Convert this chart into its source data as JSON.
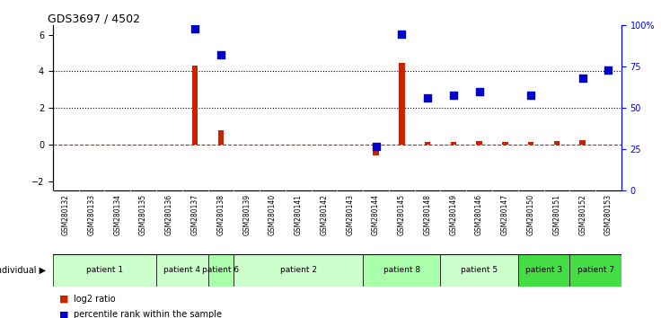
{
  "title": "GDS3697 / 4502",
  "samples": [
    "GSM280132",
    "GSM280133",
    "GSM280134",
    "GSM280135",
    "GSM280136",
    "GSM280137",
    "GSM280138",
    "GSM280139",
    "GSM280140",
    "GSM280141",
    "GSM280142",
    "GSM280143",
    "GSM280144",
    "GSM280145",
    "GSM280148",
    "GSM280149",
    "GSM280146",
    "GSM280147",
    "GSM280150",
    "GSM280151",
    "GSM280152",
    "GSM280153"
  ],
  "log2_ratio": [
    0.0,
    0.0,
    0.0,
    0.0,
    0.0,
    4.3,
    0.8,
    0.0,
    0.0,
    0.0,
    0.0,
    0.0,
    -0.55,
    4.45,
    0.18,
    0.18,
    0.22,
    0.18,
    0.18,
    0.22,
    0.28,
    0.0
  ],
  "percentile_rank": [
    0,
    0,
    0,
    0,
    0,
    98,
    82,
    0,
    0,
    0,
    0,
    0,
    27,
    95,
    56,
    58,
    60,
    0,
    58,
    0,
    68,
    73
  ],
  "patients": [
    {
      "label": "patient 1",
      "start": 0,
      "end": 4,
      "color": "#ccffcc"
    },
    {
      "label": "patient 4",
      "start": 4,
      "end": 6,
      "color": "#ccffcc"
    },
    {
      "label": "patient 6",
      "start": 6,
      "end": 7,
      "color": "#aaffaa"
    },
    {
      "label": "patient 2",
      "start": 7,
      "end": 12,
      "color": "#ccffcc"
    },
    {
      "label": "patient 8",
      "start": 12,
      "end": 15,
      "color": "#aaffaa"
    },
    {
      "label": "patient 5",
      "start": 15,
      "end": 18,
      "color": "#ccffcc"
    },
    {
      "label": "patient 3",
      "start": 18,
      "end": 20,
      "color": "#44dd44"
    },
    {
      "label": "patient 7",
      "start": 20,
      "end": 22,
      "color": "#44dd44"
    }
  ],
  "ylim_left": [
    -2.5,
    6.5
  ],
  "ylim_right": [
    0,
    100
  ],
  "yticks_left": [
    -2,
    0,
    2,
    4,
    6
  ],
  "yticks_right": [
    0,
    25,
    50,
    75,
    100
  ],
  "yticklabels_right": [
    "0",
    "25",
    "50",
    "75",
    "100%"
  ],
  "bar_color_red": "#cc2200",
  "bar_color_blue": "#0000cc",
  "hline_color": "#cc2200",
  "dotline_y": [
    2,
    4
  ],
  "bg_color": "#ffffff",
  "sample_bg": "#dddddd",
  "legend_red": "log2 ratio",
  "legend_blue": "percentile rank within the sample",
  "bar_width": 0.5,
  "marker_size": 40
}
